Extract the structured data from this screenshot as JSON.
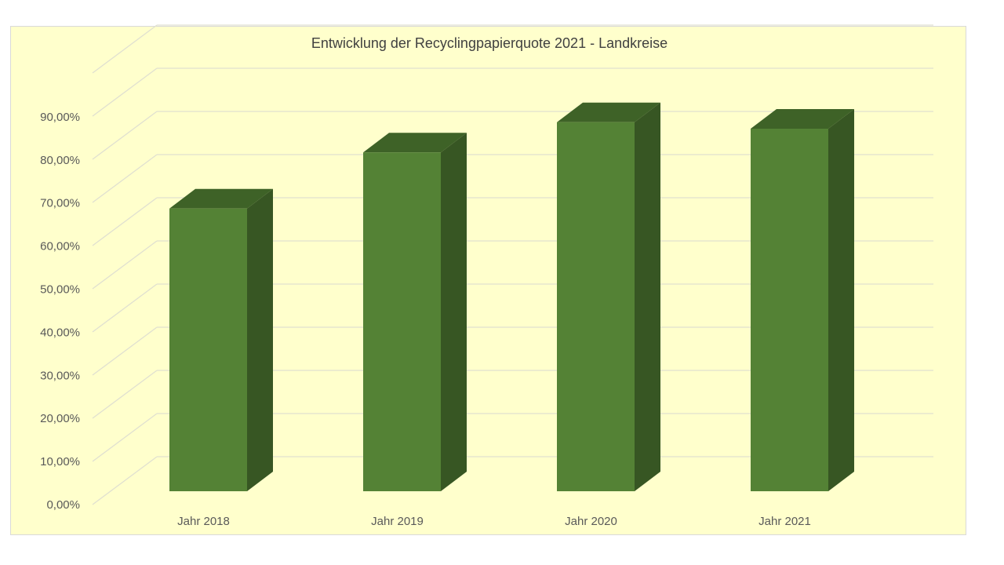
{
  "chart_data": {
    "type": "bar",
    "title": "Entwicklung  der Recyclingpapierquote 2021 - Landkreise",
    "categories": [
      "Jahr 2018",
      "Jahr 2019",
      "Jahr 2020",
      "Jahr 2021"
    ],
    "values": [
      65.5,
      78.5,
      85.5,
      84.0
    ],
    "value_unit": "%",
    "xlabel": "",
    "ylabel": "",
    "ylim": [
      0,
      100
    ],
    "y_ticks": [
      "0,00%",
      "10,00%",
      "20,00%",
      "30,00%",
      "40,00%",
      "50,00%",
      "60,00%",
      "70,00%",
      "80,00%",
      "90,00%"
    ],
    "grid": true,
    "legend": "none",
    "style": "3d-column",
    "colors": {
      "front": "#548235",
      "top": "#3e6227",
      "side": "#375623",
      "background": "#ffffcc",
      "grid": "#e0e0d0"
    }
  }
}
